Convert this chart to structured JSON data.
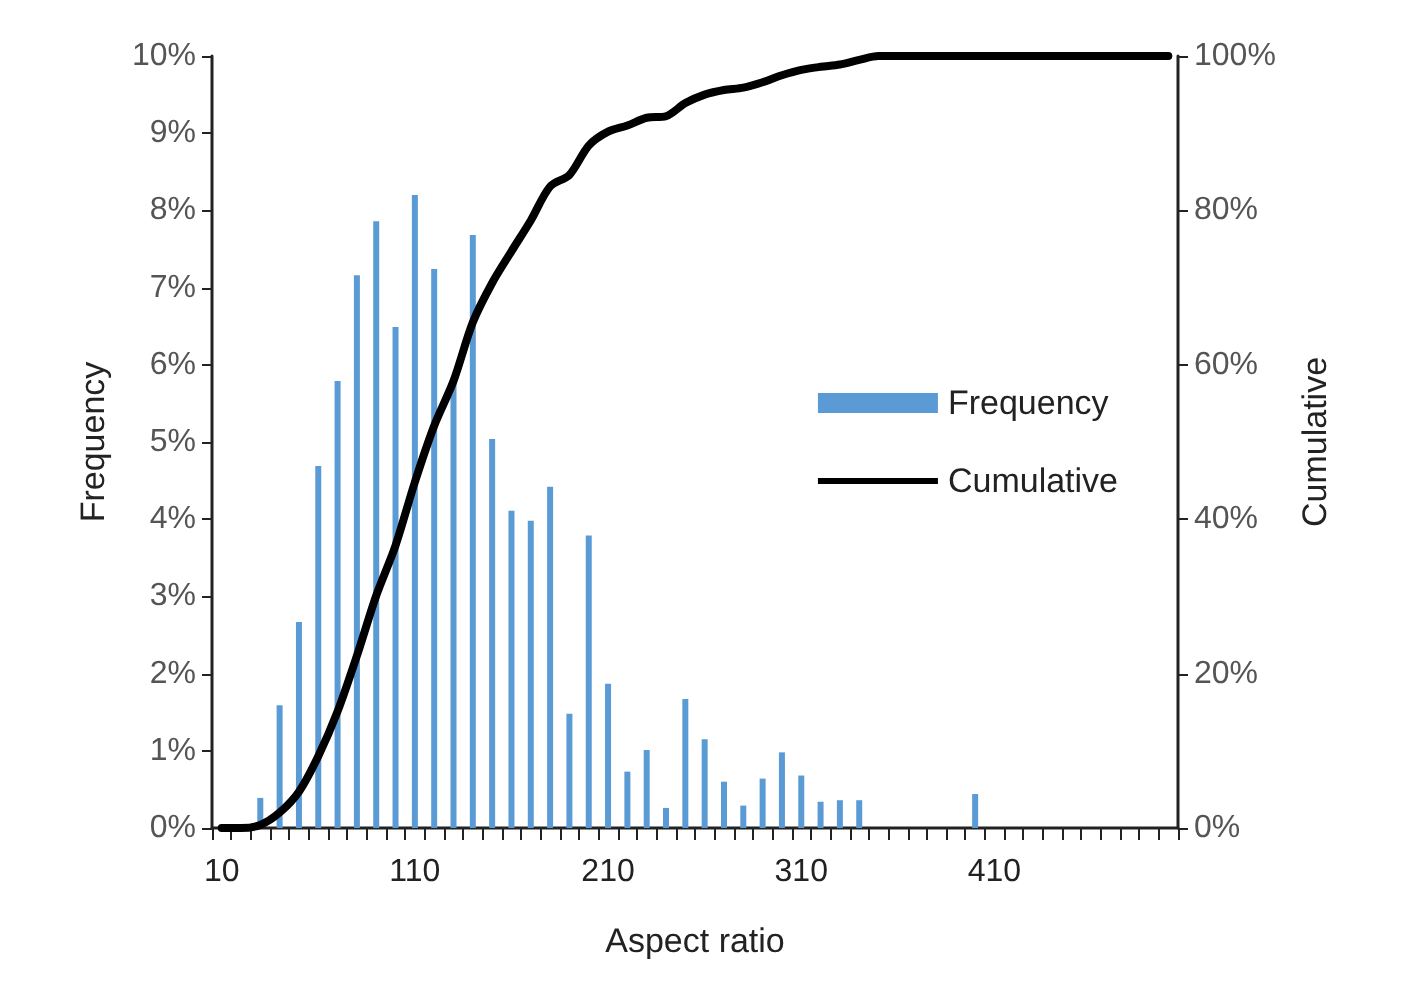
{
  "chart_data": {
    "type": "bar",
    "xlabel": "Aspect ratio",
    "ylabel": "Frequency",
    "y2label": "Cumulative",
    "categories": [
      "10",
      null,
      null,
      null,
      null,
      null,
      null,
      null,
      null,
      null,
      "110",
      null,
      null,
      null,
      null,
      null,
      null,
      null,
      null,
      null,
      "210",
      null,
      null,
      null,
      null,
      null,
      null,
      null,
      null,
      null,
      "310",
      null,
      null,
      null,
      null,
      null,
      null,
      null,
      null,
      null,
      "410",
      null,
      null,
      null,
      null,
      null,
      null,
      null,
      null,
      null
    ],
    "series": [
      {
        "name": "Frequency",
        "color": "#5b9bd5",
        "values": [
          0,
          0,
          0.39,
          1.59,
          2.67,
          4.69,
          5.79,
          7.16,
          7.86,
          6.49,
          8.2,
          7.24,
          5.8,
          7.68,
          5.04,
          4.11,
          3.98,
          4.42,
          1.48,
          3.79,
          1.87,
          0.73,
          1.01,
          0.26,
          1.67,
          1.15,
          0.6,
          0.29,
          0.64,
          0.98,
          0.68,
          0.34,
          0.36,
          0.36,
          0,
          0,
          0,
          0,
          0,
          0.44,
          0,
          0,
          0,
          0,
          0,
          0,
          0,
          0,
          0,
          0
        ]
      },
      {
        "name": "Cumulative",
        "type": "line",
        "axis": "y2",
        "color": "#000000",
        "values": [
          0,
          0,
          0.4,
          2.0,
          4.7,
          9.3,
          15.1,
          22.3,
          30.1,
          36.6,
          44.8,
          52.1,
          57.9,
          65.5,
          70.6,
          74.7,
          78.7,
          83.1,
          84.6,
          88.4,
          90.2,
          91.0,
          92.0,
          92.2,
          93.9,
          95.0,
          95.6,
          95.9,
          96.6,
          97.5,
          98.2,
          98.6,
          98.9,
          99.5,
          100,
          100,
          100,
          100,
          100,
          100,
          100,
          100,
          100,
          100,
          100,
          100,
          100,
          100,
          100,
          100
        ]
      }
    ],
    "ylim": [
      0,
      10
    ],
    "yticks": [
      {
        "value": 0,
        "label": "0%"
      },
      {
        "value": 1,
        "label": "1%"
      },
      {
        "value": 2,
        "label": "2%"
      },
      {
        "value": 3,
        "label": "3%"
      },
      {
        "value": 4,
        "label": "4%"
      },
      {
        "value": 5,
        "label": "5%"
      },
      {
        "value": 6,
        "label": "6%"
      },
      {
        "value": 7,
        "label": "7%"
      },
      {
        "value": 8,
        "label": "8%"
      },
      {
        "value": 9,
        "label": "9%"
      },
      {
        "value": 10,
        "label": "10%"
      }
    ],
    "y2lim": [
      0,
      100
    ],
    "y2ticks": [
      {
        "value": 0,
        "label": "0%"
      },
      {
        "value": 20,
        "label": "20%"
      },
      {
        "value": 40,
        "label": "40%"
      },
      {
        "value": 60,
        "label": "60%"
      },
      {
        "value": 80,
        "label": "80%"
      },
      {
        "value": 100,
        "label": "100%"
      }
    ],
    "grid": false,
    "legend": "right",
    "marker": "none",
    "line_style": "solid"
  }
}
